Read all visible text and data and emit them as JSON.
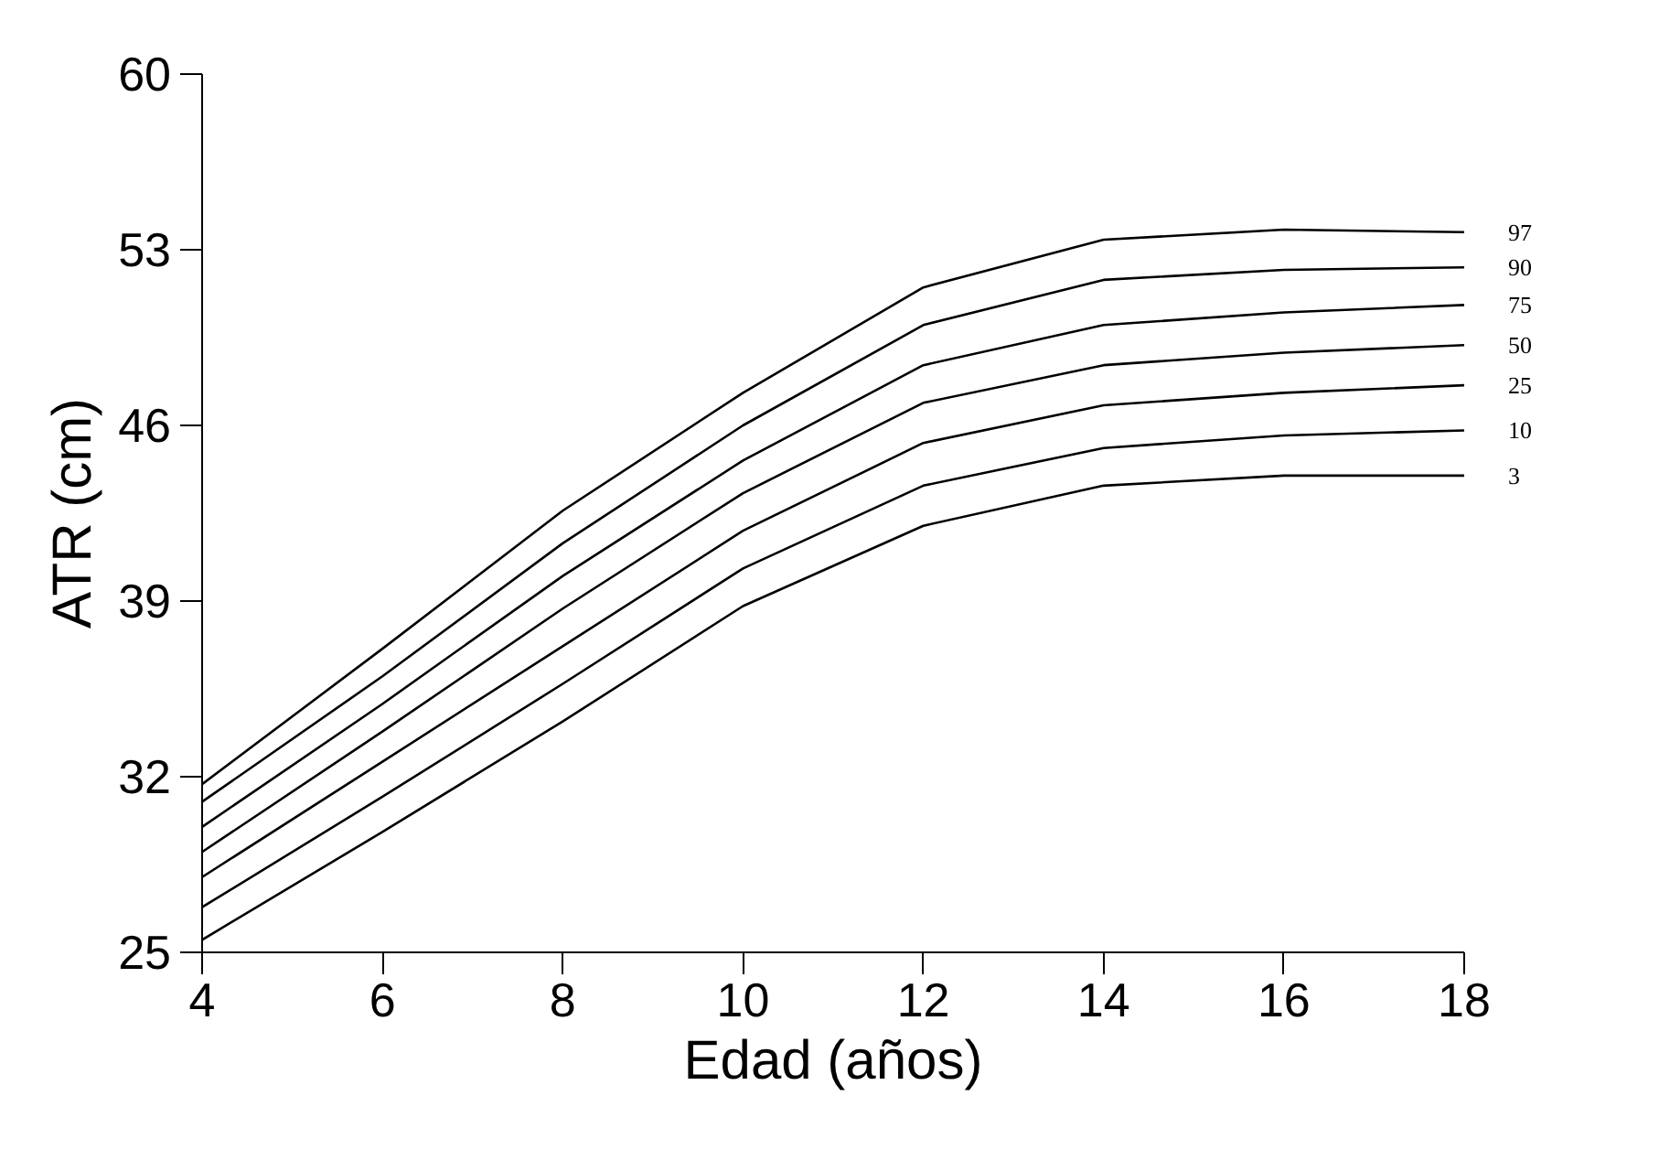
{
  "chart_data": {
    "type": "line",
    "xlabel": "Edad (años)",
    "ylabel": "ATR (cm)",
    "x": [
      4,
      6,
      8,
      10,
      12,
      14,
      16,
      18
    ],
    "xlim": [
      4,
      18
    ],
    "xticks": [
      4,
      6,
      8,
      10,
      12,
      14,
      16,
      18
    ],
    "ylim": [
      25,
      60
    ],
    "yticks": [
      25,
      32,
      39,
      46,
      53,
      60
    ],
    "grid": false,
    "legend": false,
    "marker": "none",
    "line_style": "solid",
    "series": [
      {
        "name": "97",
        "color": "#000000",
        "values": [
          31.7,
          37.1,
          42.6,
          47.3,
          51.5,
          53.4,
          53.8,
          53.7
        ]
      },
      {
        "name": "90",
        "color": "#000000",
        "values": [
          31.0,
          36.0,
          41.3,
          46.0,
          50.0,
          51.8,
          52.2,
          52.3
        ]
      },
      {
        "name": "75",
        "color": "#000000",
        "values": [
          30.0,
          34.9,
          40.0,
          44.6,
          48.4,
          50.0,
          50.5,
          50.8
        ]
      },
      {
        "name": "50",
        "color": "#000000",
        "values": [
          29.0,
          33.8,
          38.7,
          43.3,
          46.9,
          48.4,
          48.9,
          49.2
        ]
      },
      {
        "name": "25",
        "color": "#000000",
        "values": [
          28.0,
          32.6,
          37.2,
          41.8,
          45.3,
          46.8,
          47.3,
          47.6
        ]
      },
      {
        "name": "10",
        "color": "#000000",
        "values": [
          26.8,
          31.2,
          35.7,
          40.3,
          43.6,
          45.1,
          45.6,
          45.8
        ]
      },
      {
        "name": "3",
        "color": "#000000",
        "values": [
          25.5,
          29.8,
          34.2,
          38.8,
          42.0,
          43.6,
          44.0,
          44.0
        ]
      }
    ]
  }
}
